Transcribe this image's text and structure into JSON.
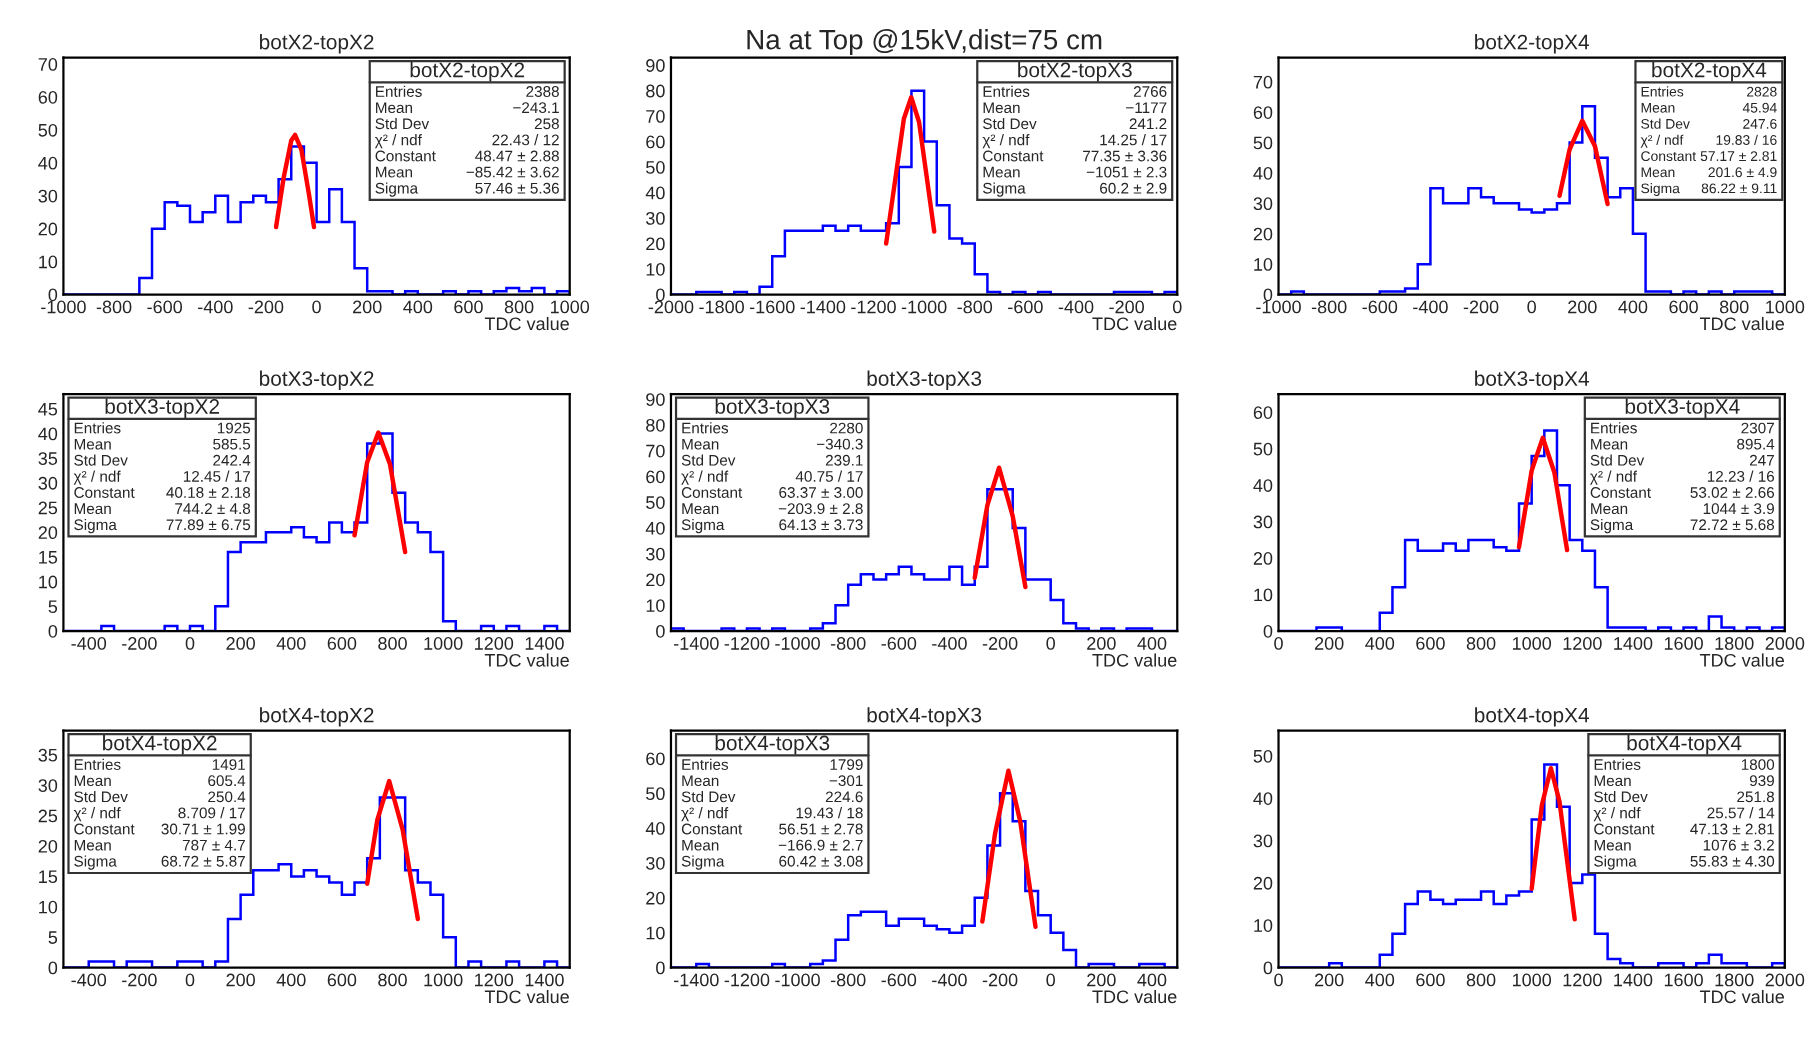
{
  "chart_data": [
    {
      "type": "histogram",
      "title": "botX2-topX2",
      "xlabel": "TDC value",
      "color": "#0000ff",
      "bins": [
        -1000,
        -950,
        -900,
        -850,
        -800,
        -750,
        -700,
        -650,
        -600,
        -550,
        -500,
        -450,
        -400,
        -350,
        -300,
        -250,
        -200,
        -150,
        -100,
        -50,
        0,
        50,
        100,
        150,
        200,
        250,
        300,
        350,
        400,
        450,
        500,
        550,
        600,
        650,
        700,
        750,
        800,
        850,
        900,
        950,
        1000
      ],
      "values": [
        0,
        0,
        0,
        0,
        0,
        0,
        5,
        20,
        28,
        27,
        22,
        25,
        30,
        22,
        28,
        30,
        28,
        35,
        45,
        40,
        22,
        32,
        22,
        8,
        1,
        1,
        0,
        1,
        0,
        0,
        1,
        0,
        1,
        0,
        1,
        2,
        1,
        2,
        0,
        1
      ],
      "series": [
        {
          "type": "line",
          "color": "#ff0000",
          "x": [
            -160,
            -130,
            -100,
            -85,
            -60,
            -30,
            -10
          ],
          "values": [
            20.5,
            35.5,
            46.8,
            48.5,
            44,
            30.4,
            20.5
          ]
        }
      ],
      "xlim": [
        -1000,
        1000
      ],
      "xticks": [
        -1000,
        -800,
        -600,
        -400,
        -200,
        0,
        200,
        400,
        600,
        800,
        1000
      ],
      "ylim": [
        0,
        72
      ],
      "yticks": [
        0,
        10,
        20,
        30,
        40,
        50,
        60,
        70
      ],
      "annotations": [
        "botX2-topX2",
        "Entries",
        "2388",
        "Mean",
        "−243.1",
        "Std Dev",
        "258",
        "χ² / ndf",
        "22.43 / 12",
        "Constant",
        "48.47 ± 2.88",
        "Mean",
        "−85.42 ± 3.62",
        "Sigma",
        "57.46 ± 5.36"
      ]
    },
    {
      "type": "histogram",
      "title": "Na at Top @15kV,dist=75 cm",
      "xlabel": "TDC value",
      "color": "#0000ff",
      "bins": [
        -2000,
        -1950,
        -1900,
        -1850,
        -1800,
        -1750,
        -1700,
        -1650,
        -1600,
        -1550,
        -1500,
        -1450,
        -1400,
        -1350,
        -1300,
        -1250,
        -1200,
        -1150,
        -1100,
        -1050,
        -1000,
        -950,
        -900,
        -850,
        -800,
        -750,
        -700,
        -650,
        -600,
        -550,
        -500,
        -450,
        -400,
        -350,
        -300,
        -250,
        -200,
        -150,
        -100,
        -50,
        0
      ],
      "values": [
        0,
        0,
        1,
        1,
        0,
        1,
        0,
        3,
        15,
        25,
        25,
        25,
        27,
        25,
        27,
        25,
        25,
        28,
        50,
        80,
        60,
        35,
        22,
        20,
        8,
        1,
        0,
        1,
        0,
        1,
        0,
        0,
        0,
        0,
        0,
        1,
        1,
        1,
        0,
        1
      ],
      "series": [
        {
          "type": "line",
          "color": "#ff0000",
          "x": [
            -1150,
            -1110,
            -1080,
            -1051,
            -1020,
            -990,
            -960
          ],
          "values": [
            20,
            48,
            69,
            77.4,
            67.7,
            46.3,
            24.7
          ]
        }
      ],
      "xlim": [
        -2000,
        0
      ],
      "xticks": [
        -2000,
        -1800,
        -1600,
        -1400,
        -1200,
        -1000,
        -800,
        -600,
        -400,
        -200,
        0
      ],
      "ylim": [
        0,
        93
      ],
      "yticks": [
        0,
        10,
        20,
        30,
        40,
        50,
        60,
        70,
        80,
        90
      ],
      "annotations": [
        "botX2-topX3",
        "Entries",
        "2766",
        "Mean",
        "−1177",
        "Std Dev",
        "241.2",
        "χ² / ndf",
        "14.25 / 17",
        "Constant",
        "77.35 ± 3.36",
        "Mean",
        "−1051 ± 2.3",
        "Sigma",
        "60.2 ± 2.9"
      ]
    },
    {
      "type": "histogram",
      "title": "botX2-topX4",
      "xlabel": "TDC value",
      "color": "#0000ff",
      "bins": [
        -1000,
        -950,
        -900,
        -850,
        -800,
        -750,
        -700,
        -650,
        -600,
        -550,
        -500,
        -450,
        -400,
        -350,
        -300,
        -250,
        -200,
        -150,
        -100,
        -50,
        0,
        50,
        100,
        150,
        200,
        250,
        300,
        350,
        400,
        450,
        500,
        550,
        600,
        650,
        700,
        750,
        800,
        850,
        900,
        950,
        1000
      ],
      "values": [
        0,
        1,
        0,
        0,
        0,
        0,
        0,
        0,
        1,
        1,
        2,
        10,
        35,
        30,
        30,
        35,
        32,
        30,
        30,
        28,
        27,
        28,
        30,
        50,
        62,
        45,
        32,
        35,
        20,
        1,
        1,
        0,
        1,
        0,
        1,
        0,
        1,
        1,
        1,
        0
      ],
      "series": [
        {
          "type": "line",
          "color": "#ff0000",
          "x": [
            110,
            150,
            200,
            250,
            300
          ],
          "values": [
            32.5,
            47.8,
            57.2,
            48.8,
            29.8
          ]
        }
      ],
      "xlim": [
        -1000,
        1000
      ],
      "xticks": [
        -1000,
        -800,
        -600,
        -400,
        -200,
        0,
        200,
        400,
        600,
        800,
        1000
      ],
      "ylim": [
        0,
        78
      ],
      "yticks": [
        0,
        10,
        20,
        30,
        40,
        50,
        60,
        70
      ],
      "annotations": [
        "botX2-topX4",
        "Entries",
        "2828",
        "Mean",
        "45.94",
        "Std Dev",
        "247.6",
        "χ² / ndf",
        "19.83 / 16",
        "Constant",
        "57.17 ± 2.81",
        "Mean",
        "201.6 ± 4.9",
        "Sigma",
        "86.22 ± 9.11"
      ]
    },
    {
      "type": "histogram",
      "title": "botX3-topX2",
      "xlabel": "TDC value",
      "color": "#0000ff",
      "bins": [
        -500,
        -450,
        -400,
        -350,
        -300,
        -250,
        -200,
        -150,
        -100,
        -50,
        0,
        50,
        100,
        150,
        200,
        250,
        300,
        350,
        400,
        450,
        500,
        550,
        600,
        650,
        700,
        750,
        800,
        850,
        900,
        950,
        1000,
        1050,
        1100,
        1150,
        1200,
        1250,
        1300,
        1350,
        1400,
        1450,
        1500
      ],
      "values": [
        0,
        0,
        0,
        1,
        0,
        0,
        0,
        0,
        1,
        0,
        1,
        0,
        5,
        16,
        18,
        18,
        20,
        20,
        21,
        19,
        18,
        22,
        20,
        22,
        38,
        40,
        28,
        22,
        20,
        16,
        2,
        0,
        0,
        1,
        0,
        1,
        0,
        0,
        1,
        0
      ],
      "series": [
        {
          "type": "line",
          "color": "#ff0000",
          "x": [
            650,
            700,
            744,
            790,
            850
          ],
          "values": [
            19.4,
            34.2,
            40.2,
            33.8,
            16
          ]
        }
      ],
      "xlim": [
        -500,
        1500
      ],
      "xticks": [
        -400,
        -200,
        0,
        200,
        400,
        600,
        800,
        1000,
        1200,
        1400
      ],
      "ylim": [
        0,
        48
      ],
      "yticks": [
        0,
        5,
        10,
        15,
        20,
        25,
        30,
        35,
        40,
        45
      ],
      "annotations": [
        "botX3-topX2",
        "Entries",
        "1925",
        "Mean",
        "585.5",
        "Std Dev",
        "242.4",
        "χ² / ndf",
        "12.45 / 17",
        "Constant",
        "40.18 ± 2.18",
        "Mean",
        "744.2 ± 4.8",
        "Sigma",
        "77.89 ± 6.75"
      ]
    },
    {
      "type": "histogram",
      "title": "botX3-topX3",
      "xlabel": "TDC value",
      "color": "#0000ff",
      "bins": [
        -1500,
        -1450,
        -1400,
        -1350,
        -1300,
        -1250,
        -1200,
        -1150,
        -1100,
        -1050,
        -1000,
        -950,
        -900,
        -850,
        -800,
        -750,
        -700,
        -650,
        -600,
        -550,
        -500,
        -450,
        -400,
        -350,
        -300,
        -250,
        -200,
        -150,
        -100,
        -50,
        0,
        50,
        100,
        150,
        200,
        250,
        300,
        350,
        400,
        450,
        500
      ],
      "values": [
        1,
        0,
        0,
        0,
        1,
        0,
        1,
        0,
        1,
        0,
        0,
        1,
        3,
        10,
        18,
        22,
        20,
        22,
        25,
        22,
        20,
        20,
        25,
        18,
        25,
        55,
        55,
        40,
        20,
        20,
        12,
        3,
        1,
        0,
        1,
        0,
        1,
        1,
        0,
        0
      ],
      "series": [
        {
          "type": "line",
          "color": "#ff0000",
          "x": [
            -300,
            -250,
            -204,
            -150,
            -100
          ],
          "values": [
            20.7,
            48.9,
            63.4,
            44.6,
            17.1
          ]
        }
      ],
      "xlim": [
        -1500,
        500
      ],
      "xticks": [
        -1400,
        -1200,
        -1000,
        -800,
        -600,
        -400,
        -200,
        0,
        200,
        400
      ],
      "ylim": [
        0,
        92
      ],
      "yticks": [
        0,
        10,
        20,
        30,
        40,
        50,
        60,
        70,
        80,
        90
      ],
      "annotations": [
        "botX3-topX3",
        "Entries",
        "2280",
        "Mean",
        "−340.3",
        "Std Dev",
        "239.1",
        "χ² / ndf",
        "40.75 / 17",
        "Constant",
        "63.37 ± 3.00",
        "Mean",
        "−203.9 ± 2.8",
        "Sigma",
        "64.13 ± 3.73"
      ]
    },
    {
      "type": "histogram",
      "title": "botX3-topX4",
      "xlabel": "TDC value",
      "color": "#0000ff",
      "bins": [
        0,
        50,
        100,
        150,
        200,
        250,
        300,
        350,
        400,
        450,
        500,
        550,
        600,
        650,
        700,
        750,
        800,
        850,
        900,
        950,
        1000,
        1050,
        1100,
        1150,
        1200,
        1250,
        1300,
        1350,
        1400,
        1450,
        1500,
        1550,
        1600,
        1650,
        1700,
        1750,
        1800,
        1850,
        1900,
        1950,
        2000
      ],
      "values": [
        0,
        0,
        0,
        1,
        1,
        0,
        0,
        0,
        5,
        12,
        25,
        22,
        22,
        24,
        22,
        25,
        25,
        23,
        22,
        35,
        48,
        55,
        40,
        25,
        22,
        12,
        1,
        1,
        1,
        0,
        1,
        0,
        1,
        0,
        4,
        1,
        0,
        1,
        0,
        1
      ],
      "series": [
        {
          "type": "line",
          "color": "#ff0000",
          "x": [
            950,
            1000,
            1044,
            1090,
            1140
          ],
          "values": [
            23,
            44,
            53,
            43.4,
            22.2
          ]
        }
      ],
      "xlim": [
        0,
        2000
      ],
      "xticks": [
        0,
        200,
        400,
        600,
        800,
        1000,
        1200,
        1400,
        1600,
        1800,
        2000
      ],
      "ylim": [
        0,
        65
      ],
      "yticks": [
        0,
        10,
        20,
        30,
        40,
        50,
        60
      ],
      "annotations": [
        "botX3-topX4",
        "Entries",
        "2307",
        "Mean",
        "895.4",
        "Std Dev",
        "247",
        "χ² / ndf",
        "12.23 / 16",
        "Constant",
        "53.02 ± 2.66",
        "Mean",
        "1044 ± 3.9",
        "Sigma",
        "72.72 ± 5.68"
      ]
    },
    {
      "type": "histogram",
      "title": "botX4-topX2",
      "xlabel": "TDC value",
      "color": "#0000ff",
      "bins": [
        -500,
        -450,
        -400,
        -350,
        -300,
        -250,
        -200,
        -150,
        -100,
        -50,
        0,
        50,
        100,
        150,
        200,
        250,
        300,
        350,
        400,
        450,
        500,
        550,
        600,
        650,
        700,
        750,
        800,
        850,
        900,
        950,
        1000,
        1050,
        1100,
        1150,
        1200,
        1250,
        1300,
        1350,
        1400,
        1450,
        1500
      ],
      "values": [
        0,
        0,
        1,
        1,
        0,
        1,
        1,
        0,
        0,
        1,
        1,
        0,
        1,
        8,
        12,
        16,
        16,
        17,
        15,
        16,
        15,
        14,
        12,
        14,
        18,
        28,
        28,
        16,
        14,
        12,
        5,
        0,
        1,
        0,
        0,
        1,
        0,
        0,
        1,
        0
      ],
      "series": [
        {
          "type": "line",
          "color": "#ff0000",
          "x": [
            700,
            740,
            787,
            840,
            900
          ],
          "values": [
            13.8,
            24.3,
            30.7,
            22.7,
            8
          ]
        }
      ],
      "xlim": [
        -500,
        1500
      ],
      "xticks": [
        -400,
        -200,
        0,
        200,
        400,
        600,
        800,
        1000,
        1200,
        1400
      ],
      "ylim": [
        0,
        39
      ],
      "yticks": [
        0,
        5,
        10,
        15,
        20,
        25,
        30,
        35
      ],
      "annotations": [
        "botX4-topX2",
        "Entries",
        "1491",
        "Mean",
        "605.4",
        "Std Dev",
        "250.4",
        "χ² / ndf",
        "8.709 / 17",
        "Constant",
        "30.71 ± 1.99",
        "Mean",
        "787 ± 4.7",
        "Sigma",
        "68.72 ± 5.87"
      ]
    },
    {
      "type": "histogram",
      "title": "botX4-topX3",
      "xlabel": "TDC value",
      "color": "#0000ff",
      "bins": [
        -1500,
        -1450,
        -1400,
        -1350,
        -1300,
        -1250,
        -1200,
        -1150,
        -1100,
        -1050,
        -1000,
        -950,
        -900,
        -850,
        -800,
        -750,
        -700,
        -650,
        -600,
        -550,
        -500,
        -450,
        -400,
        -350,
        -300,
        -250,
        -200,
        -150,
        -100,
        -50,
        0,
        50,
        100,
        150,
        200,
        250,
        300,
        350,
        400,
        450,
        500
      ],
      "values": [
        0,
        0,
        1,
        0,
        0,
        0,
        0,
        0,
        1,
        0,
        0,
        1,
        2,
        8,
        15,
        16,
        16,
        12,
        14,
        14,
        12,
        11,
        10,
        12,
        20,
        35,
        50,
        42,
        22,
        15,
        10,
        5,
        0,
        1,
        1,
        0,
        0,
        1,
        1,
        0
      ],
      "series": [
        {
          "type": "line",
          "color": "#ff0000",
          "x": [
            -270,
            -220,
            -167,
            -120,
            -60
          ],
          "values": [
            13.2,
            38.4,
            56.5,
            41.8,
            11.7
          ]
        }
      ],
      "xlim": [
        -1500,
        500
      ],
      "xticks": [
        -1400,
        -1200,
        -1000,
        -800,
        -600,
        -400,
        -200,
        0,
        200,
        400
      ],
      "ylim": [
        0,
        68
      ],
      "yticks": [
        0,
        10,
        20,
        30,
        40,
        50,
        60
      ],
      "annotations": [
        "botX4-topX3",
        "Entries",
        "1799",
        "Mean",
        "−301",
        "Std Dev",
        "224.6",
        "χ² / ndf",
        "19.43 / 18",
        "Constant",
        "56.51 ± 2.78",
        "Mean",
        "−166.9 ± 2.7",
        "Sigma",
        "60.42 ± 3.08"
      ]
    },
    {
      "type": "histogram",
      "title": "botX4-topX4",
      "xlabel": "TDC value",
      "color": "#0000ff",
      "bins": [
        0,
        50,
        100,
        150,
        200,
        250,
        300,
        350,
        400,
        450,
        500,
        550,
        600,
        650,
        700,
        750,
        800,
        850,
        900,
        950,
        1000,
        1050,
        1100,
        1150,
        1200,
        1250,
        1300,
        1350,
        1400,
        1450,
        1500,
        1550,
        1600,
        1650,
        1700,
        1750,
        1800,
        1850,
        1900,
        1950,
        2000
      ],
      "values": [
        0,
        0,
        0,
        0,
        1,
        0,
        0,
        0,
        3,
        8,
        15,
        18,
        16,
        15,
        16,
        16,
        18,
        15,
        17,
        18,
        35,
        48,
        38,
        20,
        22,
        8,
        2,
        1,
        0,
        0,
        1,
        1,
        0,
        1,
        3,
        1,
        1,
        0,
        0,
        1
      ],
      "series": [
        {
          "type": "line",
          "color": "#ff0000",
          "x": [
            1000,
            1040,
            1076,
            1110,
            1170
          ],
          "values": [
            18.6,
            38.3,
            47.1,
            39.2,
            11.4
          ]
        }
      ],
      "xlim": [
        0,
        2000
      ],
      "xticks": [
        0,
        200,
        400,
        600,
        800,
        1000,
        1200,
        1400,
        1600,
        1800,
        2000
      ],
      "ylim": [
        0,
        56
      ],
      "yticks": [
        0,
        10,
        20,
        30,
        40,
        50
      ],
      "annotations": [
        "botX4-topX4",
        "Entries",
        "1800",
        "Mean",
        "939",
        "Std Dev",
        "251.8",
        "χ² / ndf",
        "25.57 / 14",
        "Constant",
        "47.13 ± 2.81",
        "Mean",
        "1076 ± 3.2",
        "Sigma",
        "55.83 ± 4.30"
      ]
    }
  ]
}
